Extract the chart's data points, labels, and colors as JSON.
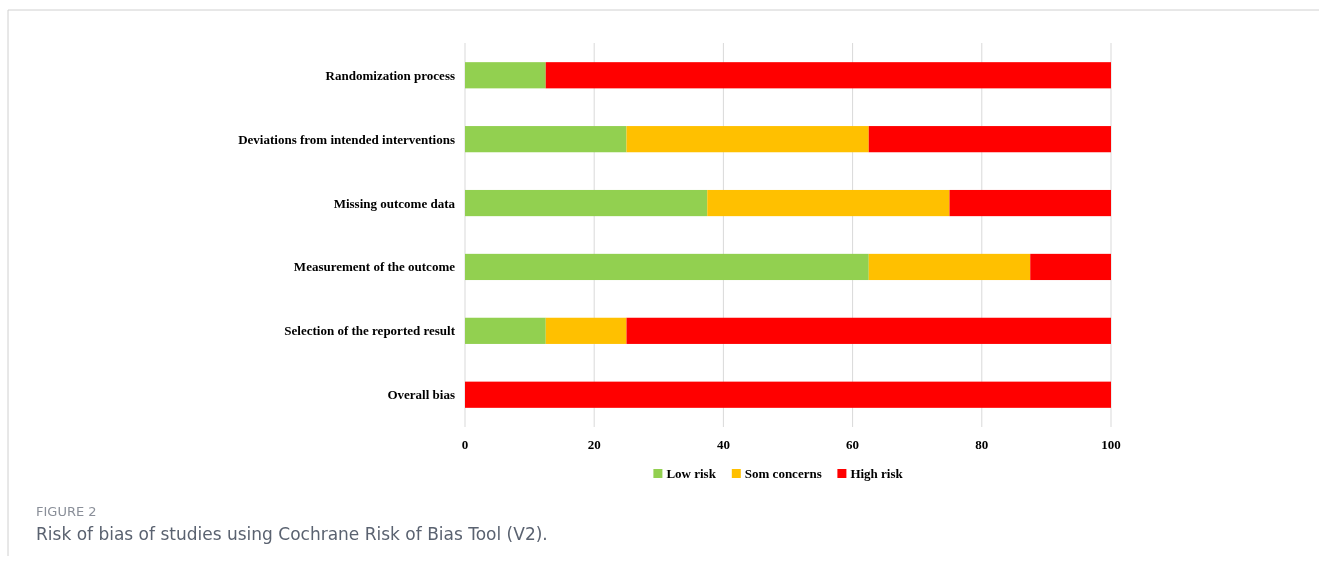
{
  "chart_data": {
    "type": "bar",
    "orientation": "horizontal",
    "stacked": true,
    "categories": [
      "Randomization process",
      "Deviations from intended interventions",
      "Missing outcome data",
      "Measurement of the outcome",
      "Selection of the reported result",
      "Overall bias"
    ],
    "series": [
      {
        "name": "Low risk",
        "color": "#92d050",
        "values": [
          12.5,
          25,
          37.5,
          62.5,
          12.5,
          0
        ]
      },
      {
        "name": "Som concerns",
        "color": "#ffc000",
        "values": [
          0,
          37.5,
          37.5,
          25,
          12.5,
          0
        ]
      },
      {
        "name": "High risk",
        "color": "#ff0000",
        "values": [
          87.5,
          37.5,
          25,
          12.5,
          75,
          100
        ]
      }
    ],
    "xlim": [
      0,
      100
    ],
    "xticks": [
      0,
      20,
      40,
      60,
      80,
      100
    ],
    "grid": "x",
    "legend": "bottom",
    "annotations": [
      "FIGURE 2",
      "Risk of bias of studies using Cochrane Risk of Bias Tool (V2)."
    ]
  }
}
